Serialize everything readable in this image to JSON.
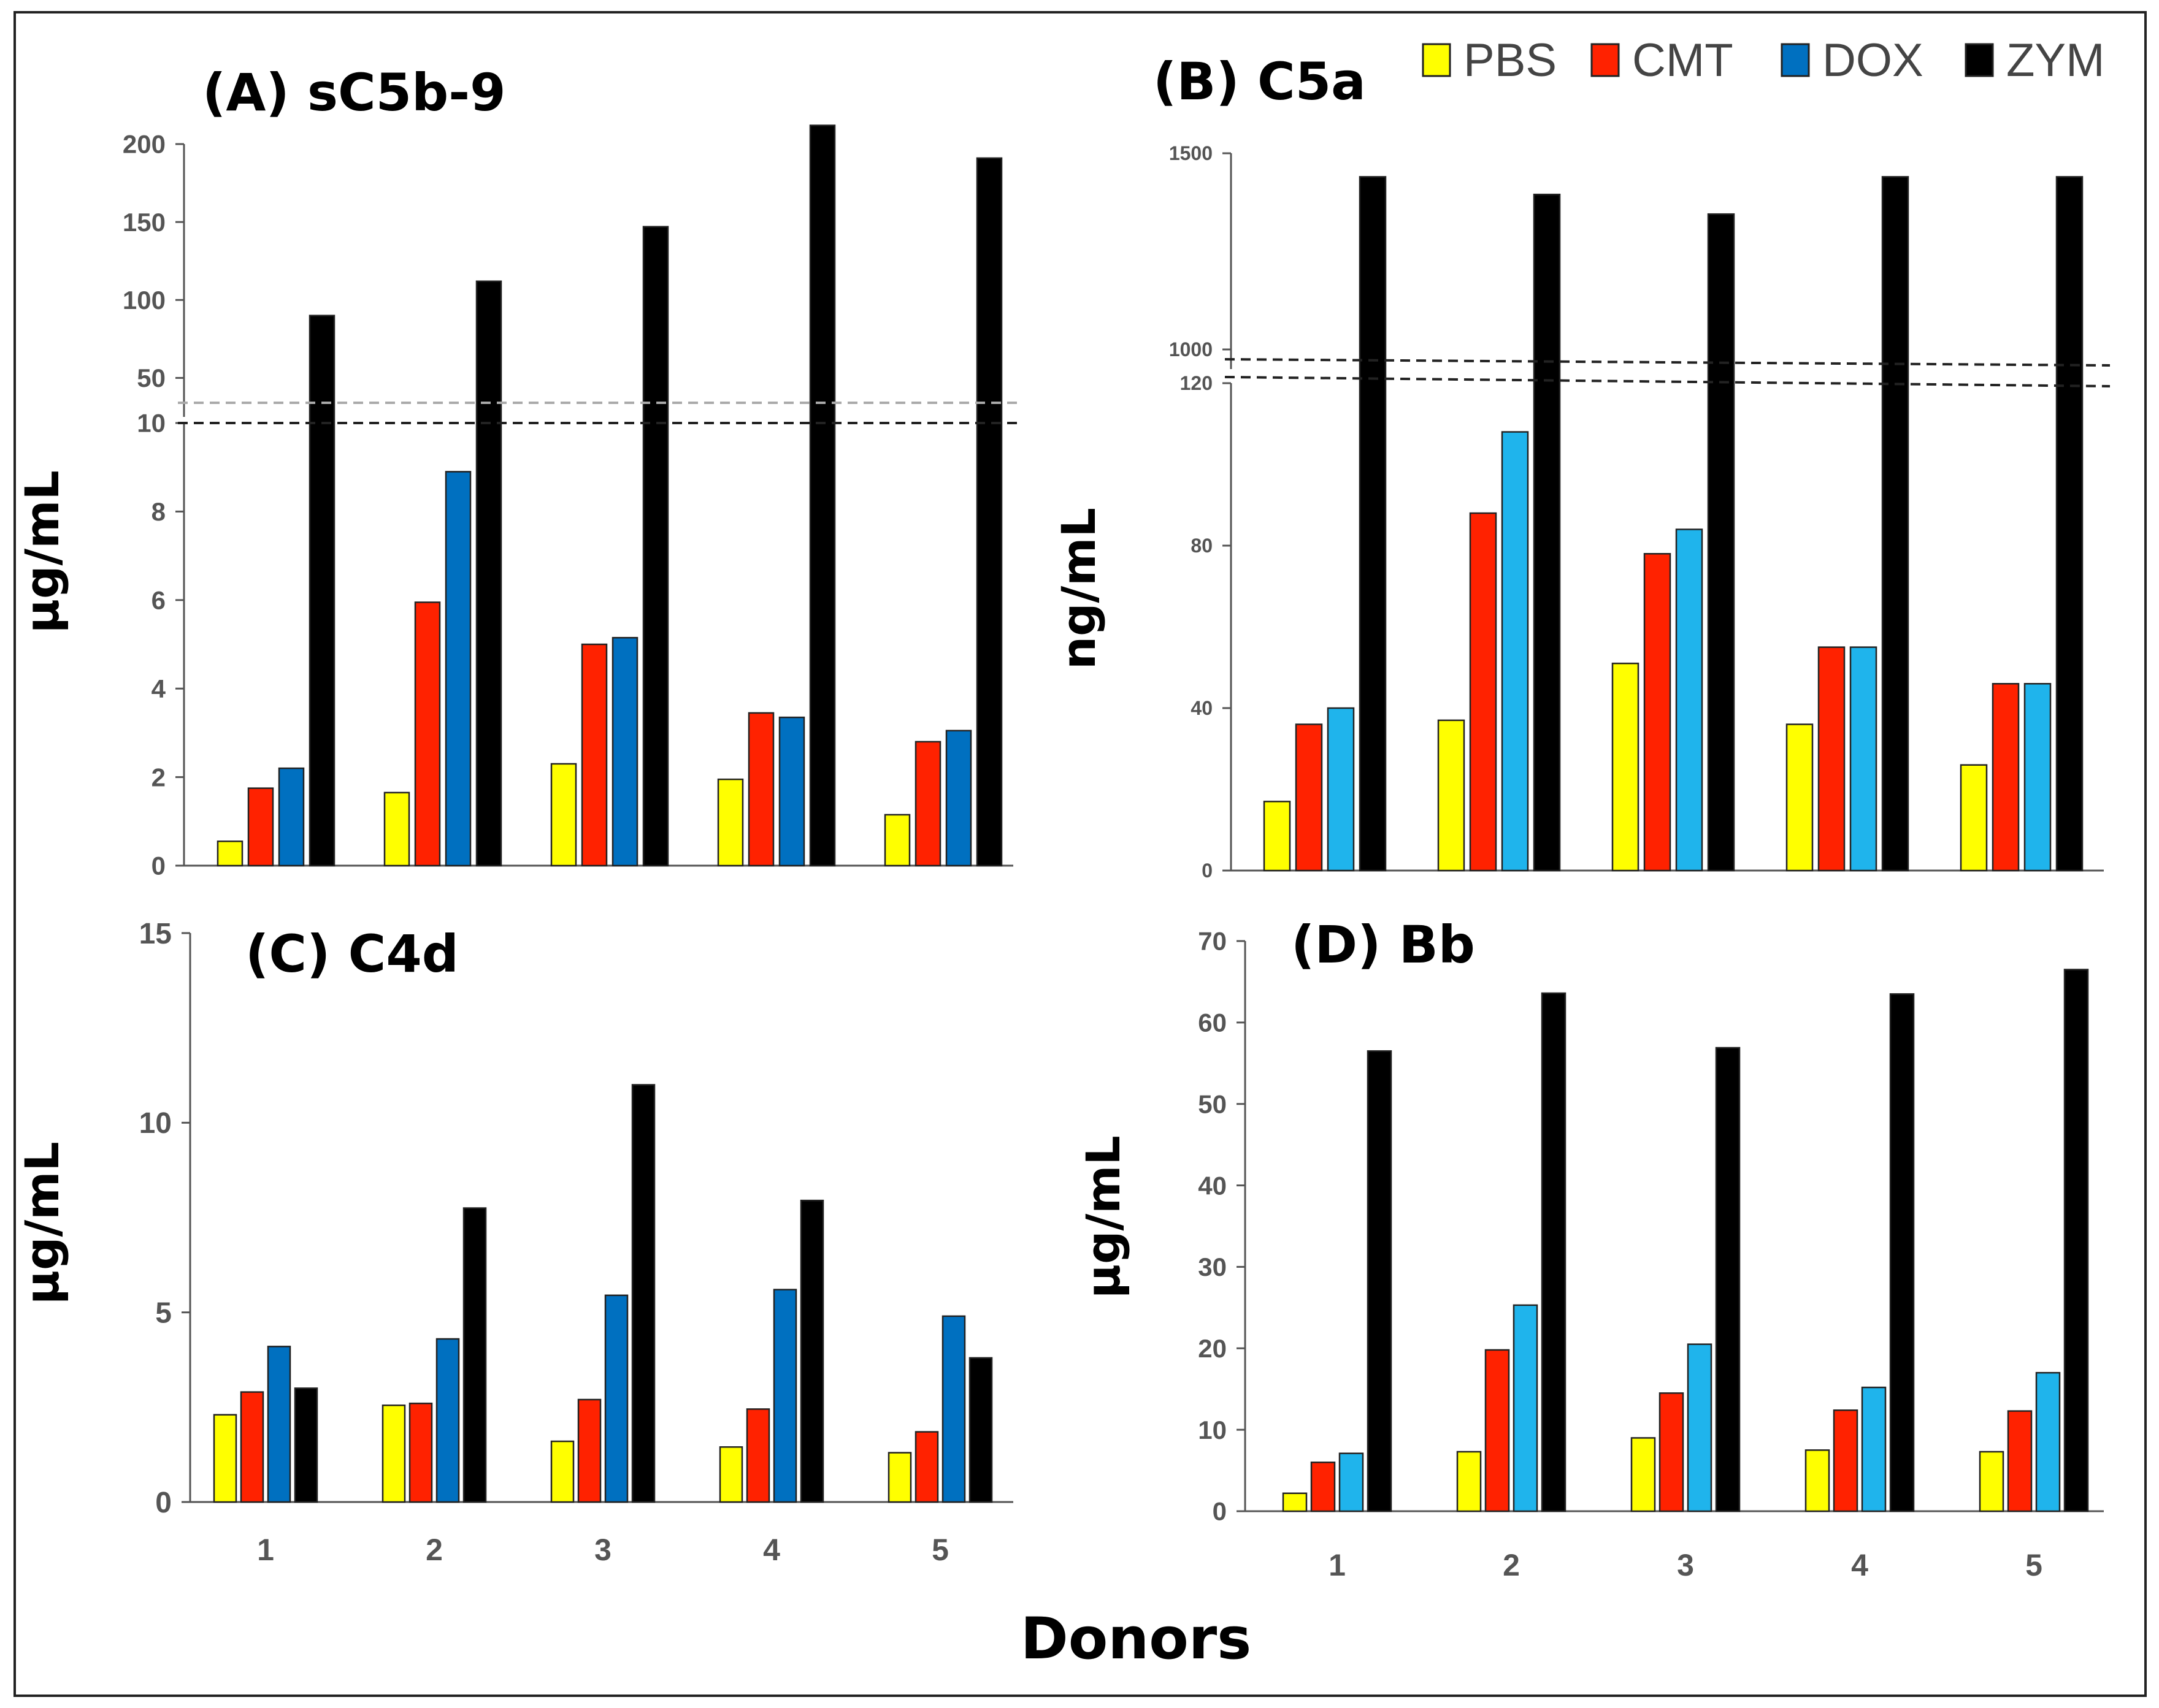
{
  "figure": {
    "xlabel": "Donors",
    "colors": {
      "PBS": "#ffff00",
      "CMT": "#ff2200",
      "DOX": "#0070c0",
      "DOX_B": "#1fb4ec",
      "ZYM": "#000000"
    },
    "legend": [
      "PBS",
      "CMT",
      "DOX",
      "ZYM"
    ]
  },
  "chart_data": [
    {
      "id": "A",
      "type": "bar",
      "title": "(A) sC5b-9",
      "ylabel": "µg/mL",
      "categories": [
        "1",
        "2",
        "3",
        "4",
        "5"
      ],
      "broken_axis": true,
      "lower_range": [
        0,
        10
      ],
      "lower_ticks": [
        "0",
        "2",
        "4",
        "6",
        "8",
        "10"
      ],
      "upper_range": [
        25,
        200
      ],
      "upper_ticks": [
        "50",
        "100",
        "150",
        "200"
      ],
      "series": [
        {
          "name": "PBS",
          "values": [
            0.55,
            1.65,
            2.3,
            1.95,
            1.15
          ]
        },
        {
          "name": "CMT",
          "values": [
            1.75,
            5.95,
            5.0,
            3.45,
            2.8
          ]
        },
        {
          "name": "DOX",
          "values": [
            2.2,
            8.9,
            5.15,
            3.35,
            3.05
          ]
        },
        {
          "name": "ZYM",
          "values": [
            90,
            112,
            147,
            212,
            191
          ]
        }
      ]
    },
    {
      "id": "B",
      "type": "bar",
      "title": "(B) C5a",
      "ylabel": "ng/mL",
      "categories": [
        "1",
        "2",
        "3",
        "4",
        "5"
      ],
      "broken_axis": true,
      "lower_range": [
        0,
        120
      ],
      "lower_ticks": [
        "0",
        "40",
        "80",
        "120"
      ],
      "upper_range": [
        950,
        1500
      ],
      "upper_ticks": [
        "1000",
        "1500"
      ],
      "series": [
        {
          "name": "PBS",
          "values": [
            17,
            37,
            51,
            36,
            26
          ]
        },
        {
          "name": "CMT",
          "values": [
            36,
            88,
            78,
            55,
            46
          ]
        },
        {
          "name": "DOX",
          "values": [
            40,
            108,
            84,
            55,
            46
          ]
        },
        {
          "name": "ZYM",
          "values": [
            1440,
            1395,
            1345,
            1440,
            1440
          ]
        }
      ]
    },
    {
      "id": "C",
      "type": "bar",
      "title": "(C) C4d",
      "ylabel": "µg/mL",
      "categories": [
        "1",
        "2",
        "3",
        "4",
        "5"
      ],
      "ylim": [
        0,
        15
      ],
      "yticks": [
        "0",
        "5",
        "10",
        "15"
      ],
      "series": [
        {
          "name": "PBS",
          "values": [
            2.3,
            2.55,
            1.6,
            1.45,
            1.3
          ]
        },
        {
          "name": "CMT",
          "values": [
            2.9,
            2.6,
            2.7,
            2.45,
            1.85
          ]
        },
        {
          "name": "DOX",
          "values": [
            4.1,
            4.3,
            5.45,
            5.6,
            4.9
          ]
        },
        {
          "name": "ZYM",
          "values": [
            3.0,
            7.75,
            11.0,
            7.95,
            3.8
          ]
        }
      ]
    },
    {
      "id": "D",
      "type": "bar",
      "title": "(D) Bb",
      "ylabel": "µg/mL",
      "categories": [
        "1",
        "2",
        "3",
        "4",
        "5"
      ],
      "ylim": [
        0,
        70
      ],
      "yticks": [
        "0",
        "10",
        "20",
        "30",
        "40",
        "50",
        "60",
        "70"
      ],
      "series": [
        {
          "name": "PBS",
          "values": [
            2.2,
            7.3,
            9.0,
            7.5,
            7.3
          ]
        },
        {
          "name": "CMT",
          "values": [
            6.0,
            19.8,
            14.5,
            12.4,
            12.3
          ]
        },
        {
          "name": "DOX",
          "values": [
            7.1,
            25.3,
            20.5,
            15.2,
            17.0
          ]
        },
        {
          "name": "ZYM",
          "values": [
            56.5,
            63.6,
            56.9,
            63.5,
            66.5
          ]
        }
      ]
    }
  ]
}
